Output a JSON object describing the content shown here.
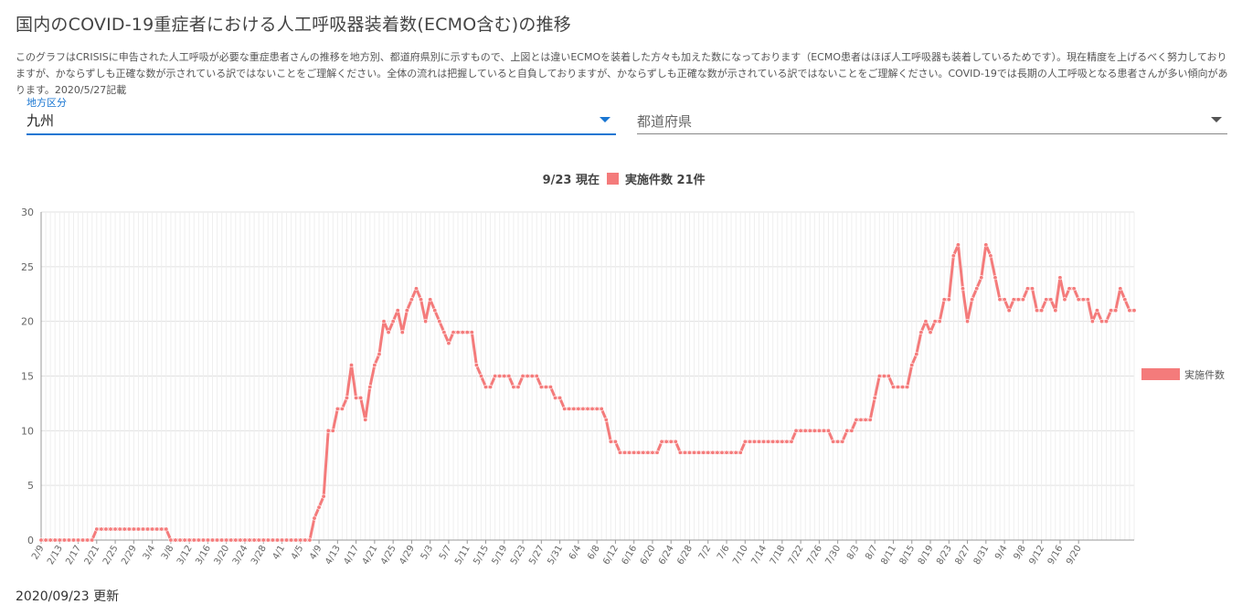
{
  "page": {
    "title": "国内のCOVID-19重症者における人工呼吸器装着数(ECMO含む)の推移",
    "description": "このグラフはCRISISに申告された人工呼吸が必要な重症患者さんの推移を地方別、都道府県別に示すもので、上図とは違いECMOを装着した方々も加えた数になっております（ECMO患者はほぼ人工呼吸器も装着しているためです）。現在精度を上げるべく努力しておりますが、かならずしも正確な数が示されている訳ではないことをご理解ください。全体の流れは把握していると自負しておりますが、かならずしも正確な数が示されている訳ではないことをご理解ください。COVID-19では長期の人工呼吸となる患者さんが多い傾向があります。2020/5/27記載",
    "updated": "2020/09/23 更新"
  },
  "filters": {
    "region_label": "地方区分",
    "region_value": "九州",
    "prefecture_placeholder": "都道府県"
  },
  "colors": {
    "series": "#f47b7b",
    "grid": "#e0e0e0",
    "axis": "#999999",
    "accent": "#1976d2"
  },
  "chart_data": {
    "type": "line",
    "title": "9/23 現在",
    "summary": "実施件数 21件",
    "xlabel": "",
    "ylabel": "",
    "ylim": [
      0,
      30
    ],
    "yticks": [
      0,
      5,
      10,
      15,
      20,
      25,
      30
    ],
    "grid": true,
    "legend_position": "right",
    "start_date": "2020-02-09",
    "xtick_labels": [
      "2/9",
      "2/13",
      "2/17",
      "2/21",
      "2/25",
      "2/29",
      "3/4",
      "3/8",
      "3/12",
      "3/16",
      "3/20",
      "3/24",
      "3/28",
      "4/1",
      "4/5",
      "4/9",
      "4/13",
      "4/17",
      "4/21",
      "4/25",
      "4/29",
      "5/3",
      "5/7",
      "5/11",
      "5/15",
      "5/19",
      "5/23",
      "5/27",
      "5/31",
      "6/4",
      "6/8",
      "6/12",
      "6/16",
      "6/20",
      "6/24",
      "6/28",
      "7/2",
      "7/6",
      "7/10",
      "7/14",
      "7/18",
      "7/22",
      "7/26",
      "7/30",
      "8/3",
      "8/7",
      "8/11",
      "8/15",
      "8/19",
      "8/23",
      "8/27",
      "8/31",
      "9/4",
      "9/8",
      "9/12",
      "9/16",
      "9/20"
    ],
    "series": [
      {
        "name": "実施件数",
        "color": "#f47b7b",
        "values": [
          0,
          0,
          0,
          0,
          0,
          0,
          0,
          0,
          0,
          0,
          0,
          0,
          1,
          1,
          1,
          1,
          1,
          1,
          1,
          1,
          1,
          1,
          1,
          1,
          1,
          1,
          1,
          1,
          0,
          0,
          0,
          0,
          0,
          0,
          0,
          0,
          0,
          0,
          0,
          0,
          0,
          0,
          0,
          0,
          0,
          0,
          0,
          0,
          0,
          0,
          0,
          0,
          0,
          0,
          0,
          0,
          0,
          0,
          0,
          2,
          3,
          4,
          10,
          10,
          12,
          12,
          13,
          16,
          13,
          13,
          11,
          14,
          16,
          17,
          20,
          19,
          20,
          21,
          19,
          21,
          22,
          23,
          22,
          20,
          22,
          21,
          20,
          19,
          18,
          19,
          19,
          19,
          19,
          19,
          16,
          15,
          14,
          14,
          15,
          15,
          15,
          15,
          14,
          14,
          15,
          15,
          15,
          15,
          14,
          14,
          14,
          13,
          13,
          12,
          12,
          12,
          12,
          12,
          12,
          12,
          12,
          12,
          11,
          9,
          9,
          8,
          8,
          8,
          8,
          8,
          8,
          8,
          8,
          8,
          9,
          9,
          9,
          9,
          8,
          8,
          8,
          8,
          8,
          8,
          8,
          8,
          8,
          8,
          8,
          8,
          8,
          8,
          9,
          9,
          9,
          9,
          9,
          9,
          9,
          9,
          9,
          9,
          9,
          10,
          10,
          10,
          10,
          10,
          10,
          10,
          10,
          9,
          9,
          9,
          10,
          10,
          11,
          11,
          11,
          11,
          13,
          15,
          15,
          15,
          14,
          14,
          14,
          14,
          16,
          17,
          19,
          20,
          19,
          20,
          20,
          22,
          22,
          26,
          27,
          23,
          20,
          22,
          23,
          24,
          27,
          26,
          24,
          22,
          22,
          21,
          22,
          22,
          22,
          23,
          23,
          21,
          21,
          22,
          22,
          21,
          24,
          22,
          23,
          23,
          22,
          22,
          22,
          20,
          21,
          20,
          20,
          21,
          21,
          23,
          22,
          21,
          21
        ]
      }
    ]
  }
}
